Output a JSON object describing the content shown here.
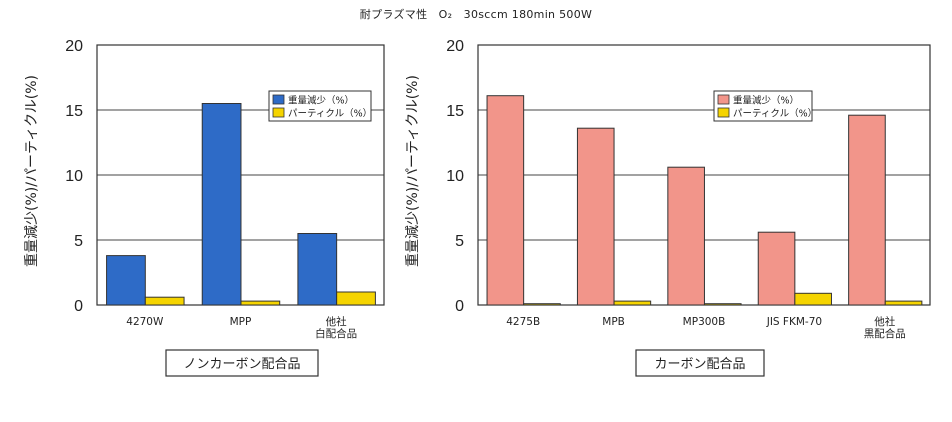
{
  "page": {
    "title": "耐プラズマ性　O₂　30sccm 180min 500W"
  },
  "chart_data": [
    {
      "type": "bar",
      "caption": "ノンカーボン配合品",
      "ylabel": "重量減少(%)/パーティクル(%)",
      "ylim": [
        0,
        20
      ],
      "yticks": [
        0,
        5,
        10,
        15,
        20
      ],
      "grid": true,
      "legend_position": "top-right",
      "categories": [
        [
          "4270W"
        ],
        [
          "MPP"
        ],
        [
          "他社",
          "白配合品"
        ]
      ],
      "series": [
        {
          "name": "重量減少（%）",
          "color": "#2e6bc7",
          "values": [
            3.8,
            15.5,
            5.5
          ]
        },
        {
          "name": "パーティクル（%）",
          "color": "#f5d400",
          "values": [
            0.6,
            0.3,
            1.0
          ]
        }
      ]
    },
    {
      "type": "bar",
      "caption": "カーボン配合品",
      "ylabel": "重量減少(%)/パーティクル(%)",
      "ylim": [
        0,
        20
      ],
      "yticks": [
        0,
        5,
        10,
        15,
        20
      ],
      "grid": true,
      "legend_position": "top-right",
      "categories": [
        [
          "4275B"
        ],
        [
          "MPB"
        ],
        [
          "MP300B"
        ],
        [
          "JIS FKM-70"
        ],
        [
          "他社",
          "黒配合品"
        ]
      ],
      "series": [
        {
          "name": "重量減少（%）",
          "color": "#f2958a",
          "values": [
            16.1,
            13.6,
            10.6,
            5.6,
            14.6
          ]
        },
        {
          "name": "パーティクル（%）",
          "color": "#f5d400",
          "values": [
            0.1,
            0.3,
            0.1,
            0.9,
            0.3
          ]
        }
      ]
    }
  ]
}
